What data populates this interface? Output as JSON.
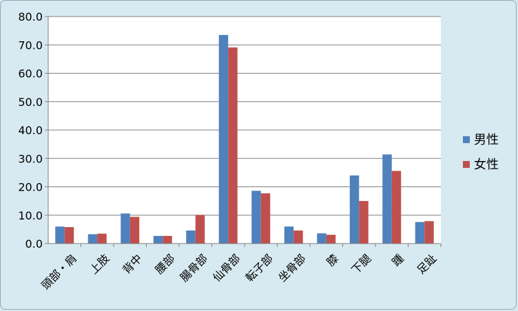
{
  "chart_data": {
    "type": "bar",
    "categories": [
      "頭部・肩",
      "上肢",
      "背中",
      "腰部",
      "腸骨部",
      "仙骨部",
      "転子部",
      "坐骨部",
      "膝",
      "下腿",
      "踵",
      "足趾"
    ],
    "series": [
      {
        "name": "男性",
        "values": [
          6.0,
          3.3,
          10.6,
          2.7,
          4.6,
          73.5,
          18.6,
          6.0,
          3.6,
          24.0,
          31.4,
          7.6
        ],
        "color": "#4f81bd"
      },
      {
        "name": "女性",
        "values": [
          5.8,
          3.5,
          9.4,
          2.7,
          10.1,
          69.1,
          17.7,
          4.6,
          3.1,
          15.0,
          25.6,
          7.9
        ],
        "color": "#c0504d"
      }
    ],
    "ylim": [
      0,
      80
    ],
    "yticks": [
      "0.0",
      "10.0",
      "20.0",
      "30.0",
      "40.0",
      "50.0",
      "60.0",
      "70.0",
      "80.0"
    ],
    "grid": true,
    "legend_position": "right",
    "title": "",
    "xlabel": "",
    "ylabel": ""
  }
}
